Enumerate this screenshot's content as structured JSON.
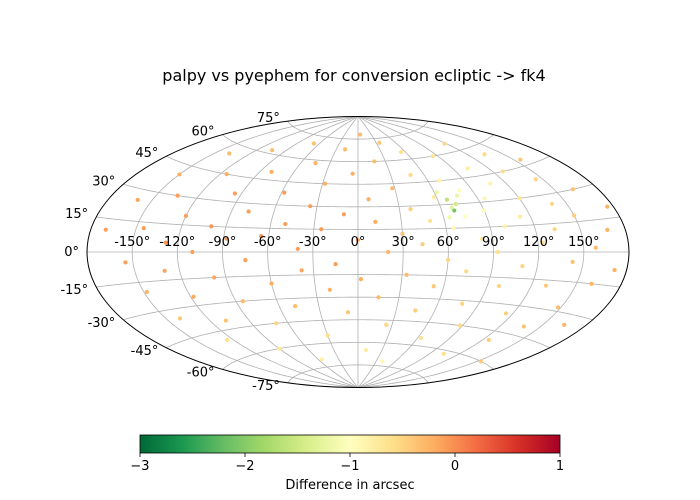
{
  "title": "palpy vs pyephem for conversion ecliptic -> fk4",
  "colors": {
    "grid": "#b0b0b0",
    "frame": "#000000",
    "colormap": [
      "#006837",
      "#1a9850",
      "#66bd63",
      "#a6d96a",
      "#d9ef8b",
      "#ffffbf",
      "#fee08b",
      "#fdae61",
      "#f46d43",
      "#d73027",
      "#a50026"
    ]
  },
  "colorbar": {
    "label": "Difference in arcsec",
    "colormap": "RdYlGn_r",
    "range": [
      -3,
      1
    ],
    "ticks": [
      -3,
      -2,
      -1,
      0,
      1
    ],
    "tick_labels": [
      "−3",
      "−2",
      "−1",
      "0",
      "1"
    ]
  },
  "chart_data": {
    "type": "scatter",
    "projection": "aitoff",
    "title": "palpy vs pyephem for conversion ecliptic -> fk4",
    "xlabel": "",
    "ylabel": "",
    "xlim": [
      -180,
      180
    ],
    "ylim": [
      -90,
      90
    ],
    "grid": true,
    "x_ticks": [
      -150,
      -120,
      -90,
      -60,
      -30,
      0,
      30,
      60,
      90,
      120,
      150
    ],
    "x_tick_labels": [
      "-150°",
      "-120°",
      "-90°",
      "-60°",
      "-30°",
      "0°",
      "30°",
      "60°",
      "90°",
      "120°",
      "150°"
    ],
    "y_ticks": [
      -75,
      -60,
      -45,
      -30,
      -15,
      0,
      15,
      30,
      45,
      60,
      75
    ],
    "y_tick_labels": [
      "-75°",
      "-60°",
      "-45°",
      "-30°",
      "-15°",
      "0°",
      "15°",
      "30°",
      "45°",
      "60°",
      "75°"
    ],
    "point_color_variable": "Difference in arcsec",
    "points": [
      {
        "lon": -170,
        "lat": 10,
        "v": -0.1
      },
      {
        "lon": -160,
        "lat": 25,
        "v": -0.15
      },
      {
        "lon": -155,
        "lat": -5,
        "v": -0.1
      },
      {
        "lon": -150,
        "lat": 40,
        "v": -0.2
      },
      {
        "lon": -148,
        "lat": -20,
        "v": -0.25
      },
      {
        "lon": -145,
        "lat": 12,
        "v": -0.1
      },
      {
        "lon": -140,
        "lat": -35,
        "v": -0.4
      },
      {
        "lon": -138,
        "lat": 55,
        "v": -0.3
      },
      {
        "lon": -135,
        "lat": 30,
        "v": -0.1
      },
      {
        "lon": -130,
        "lat": -10,
        "v": -0.15
      },
      {
        "lon": -128,
        "lat": 5,
        "v": -0.05
      },
      {
        "lon": -125,
        "lat": -50,
        "v": -0.6
      },
      {
        "lon": -120,
        "lat": 20,
        "v": -0.1
      },
      {
        "lon": -118,
        "lat": -25,
        "v": -0.2
      },
      {
        "lon": -115,
        "lat": 45,
        "v": -0.2
      },
      {
        "lon": -110,
        "lat": 0,
        "v": -0.1
      },
      {
        "lon": -108,
        "lat": -40,
        "v": -0.35
      },
      {
        "lon": -105,
        "lat": 62,
        "v": -0.3
      },
      {
        "lon": -100,
        "lat": 15,
        "v": -0.05
      },
      {
        "lon": -98,
        "lat": -15,
        "v": -0.15
      },
      {
        "lon": -95,
        "lat": 35,
        "v": -0.1
      },
      {
        "lon": -90,
        "lat": -60,
        "v": -0.7
      },
      {
        "lon": -88,
        "lat": 8,
        "v": -0.1
      },
      {
        "lon": -85,
        "lat": -30,
        "v": -0.3
      },
      {
        "lon": -80,
        "lat": 50,
        "v": -0.2
      },
      {
        "lon": -78,
        "lat": 25,
        "v": -0.1
      },
      {
        "lon": -75,
        "lat": -5,
        "v": -0.1
      },
      {
        "lon": -70,
        "lat": -45,
        "v": -0.5
      },
      {
        "lon": -68,
        "lat": 70,
        "v": -0.35
      },
      {
        "lon": -65,
        "lat": 10,
        "v": -0.05
      },
      {
        "lon": -60,
        "lat": -20,
        "v": -0.2
      },
      {
        "lon": -58,
        "lat": 38,
        "v": -0.1
      },
      {
        "lon": -55,
        "lat": -70,
        "v": -0.8
      },
      {
        "lon": -50,
        "lat": 18,
        "v": -0.1
      },
      {
        "lon": -48,
        "lat": -35,
        "v": -0.3
      },
      {
        "lon": -45,
        "lat": 58,
        "v": -0.25
      },
      {
        "lon": -40,
        "lat": 2,
        "v": -0.1
      },
      {
        "lon": -38,
        "lat": -12,
        "v": -0.15
      },
      {
        "lon": -35,
        "lat": 30,
        "v": -0.1
      },
      {
        "lon": -30,
        "lat": -55,
        "v": -0.6
      },
      {
        "lon": -28,
        "lat": 45,
        "v": -0.2
      },
      {
        "lon": -25,
        "lat": 15,
        "v": -0.1
      },
      {
        "lon": -20,
        "lat": -25,
        "v": -0.2
      },
      {
        "lon": -18,
        "lat": 68,
        "v": -0.3
      },
      {
        "lon": -15,
        "lat": -8,
        "v": -0.1
      },
      {
        "lon": -10,
        "lat": 25,
        "v": -0.1
      },
      {
        "lon": -8,
        "lat": -40,
        "v": -0.4
      },
      {
        "lon": -5,
        "lat": 52,
        "v": -0.2
      },
      {
        "lon": 0,
        "lat": 8,
        "v": -0.15
      },
      {
        "lon": 2,
        "lat": -18,
        "v": -0.2
      },
      {
        "lon": 5,
        "lat": 78,
        "v": -0.3
      },
      {
        "lon": 8,
        "lat": 35,
        "v": -0.2
      },
      {
        "lon": 10,
        "lat": -65,
        "v": -0.75
      },
      {
        "lon": 12,
        "lat": 20,
        "v": -0.2
      },
      {
        "lon": 15,
        "lat": -30,
        "v": -0.3
      },
      {
        "lon": 18,
        "lat": 60,
        "v": -0.3
      },
      {
        "lon": 20,
        "lat": 0,
        "v": -0.25
      },
      {
        "lon": 25,
        "lat": -48,
        "v": -0.5
      },
      {
        "lon": 28,
        "lat": 42,
        "v": -0.3
      },
      {
        "lon": 30,
        "lat": 12,
        "v": -0.35
      },
      {
        "lon": 33,
        "lat": -15,
        "v": -0.3
      },
      {
        "lon": 35,
        "lat": 72,
        "v": -0.4
      },
      {
        "lon": 38,
        "lat": 28,
        "v": -0.45
      },
      {
        "lon": 40,
        "lat": -72,
        "v": -0.9
      },
      {
        "lon": 43,
        "lat": 5,
        "v": -0.45
      },
      {
        "lon": 45,
        "lat": -38,
        "v": -0.45
      },
      {
        "lon": 48,
        "lat": 50,
        "v": -0.55
      },
      {
        "lon": 50,
        "lat": 20,
        "v": -0.65
      },
      {
        "lon": 53,
        "lat": -22,
        "v": -0.4
      },
      {
        "lon": 55,
        "lat": 65,
        "v": -0.6
      },
      {
        "lon": 58,
        "lat": 35,
        "v": -0.75
      },
      {
        "lon": 60,
        "lat": -5,
        "v": -0.5
      },
      {
        "lon": 63,
        "lat": -55,
        "v": -0.65
      },
      {
        "lon": 65,
        "lat": 15,
        "v": -0.9
      },
      {
        "lon": 68,
        "lat": 28,
        "v": -1.3
      },
      {
        "lon": 70,
        "lat": 45,
        "v": -0.85
      },
      {
        "lon": 73,
        "lat": -12,
        "v": -0.55
      },
      {
        "lon": 75,
        "lat": 22,
        "v": -1.0
      },
      {
        "lon": 78,
        "lat": -32,
        "v": -0.5
      },
      {
        "lon": 80,
        "lat": 38,
        "v": -0.95
      },
      {
        "lon": 83,
        "lat": 8,
        "v": -0.7
      },
      {
        "lon": 85,
        "lat": 60,
        "v": -0.7
      },
      {
        "lon": 88,
        "lat": -45,
        "v": -0.55
      },
      {
        "lon": 90,
        "lat": 25,
        "v": -0.95
      },
      {
        "lon": 93,
        "lat": 0,
        "v": -0.6
      },
      {
        "lon": 95,
        "lat": 32,
        "v": -0.9
      },
      {
        "lon": 98,
        "lat": -20,
        "v": -0.5
      },
      {
        "lon": 100,
        "lat": 15,
        "v": -0.8
      },
      {
        "lon": 103,
        "lat": 50,
        "v": -0.75
      },
      {
        "lon": 105,
        "lat": -62,
        "v": -0.6
      },
      {
        "lon": 108,
        "lat": 40,
        "v": -0.85
      },
      {
        "lon": 110,
        "lat": -8,
        "v": -0.5
      },
      {
        "lon": 113,
        "lat": 20,
        "v": -0.75
      },
      {
        "lon": 115,
        "lat": -35,
        "v": -0.45
      },
      {
        "lon": 118,
        "lat": 65,
        "v": -0.55
      },
      {
        "lon": 120,
        "lat": 30,
        "v": -0.7
      },
      {
        "lon": 123,
        "lat": 5,
        "v": -0.55
      },
      {
        "lon": 125,
        "lat": -50,
        "v": -0.45
      },
      {
        "lon": 128,
        "lat": 45,
        "v": -0.6
      },
      {
        "lon": 130,
        "lat": -18,
        "v": -0.4
      },
      {
        "lon": 133,
        "lat": 12,
        "v": -0.5
      },
      {
        "lon": 135,
        "lat": 55,
        "v": -0.55
      },
      {
        "lon": 138,
        "lat": -40,
        "v": -0.35
      },
      {
        "lon": 140,
        "lat": 25,
        "v": -0.55
      },
      {
        "lon": 143,
        "lat": -5,
        "v": -0.35
      },
      {
        "lon": 145,
        "lat": 38,
        "v": -0.5
      },
      {
        "lon": 148,
        "lat": -28,
        "v": -0.3
      },
      {
        "lon": 150,
        "lat": 18,
        "v": -0.45
      },
      {
        "lon": 153,
        "lat": -60,
        "v": -0.4
      },
      {
        "lon": 155,
        "lat": 48,
        "v": -0.4
      },
      {
        "lon": 158,
        "lat": 2,
        "v": -0.3
      },
      {
        "lon": 160,
        "lat": -15,
        "v": -0.25
      },
      {
        "lon": 163,
        "lat": 30,
        "v": -0.35
      },
      {
        "lon": 165,
        "lat": -35,
        "v": -0.25
      },
      {
        "lon": 168,
        "lat": 10,
        "v": -0.25
      },
      {
        "lon": 172,
        "lat": -8,
        "v": -0.2
      },
      {
        "lon": 176,
        "lat": 20,
        "v": -0.25
      },
      {
        "lon": 69,
        "lat": 26,
        "v": -2.1
      },
      {
        "lon": 67,
        "lat": 33,
        "v": -1.6
      },
      {
        "lon": 72,
        "lat": 30,
        "v": -1.45
      },
      {
        "lon": 62,
        "lat": 38,
        "v": -1.2
      },
      {
        "lon": 76,
        "lat": 35,
        "v": -1.2
      },
      {
        "lon": 64,
        "lat": 22,
        "v": -1.15
      }
    ]
  }
}
